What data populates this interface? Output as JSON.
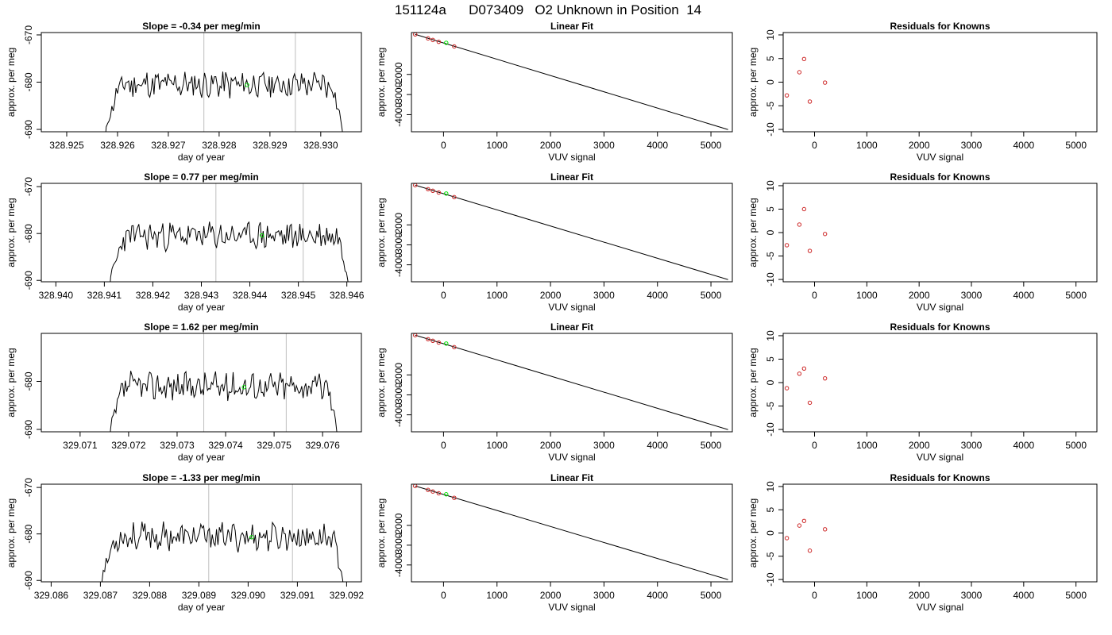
{
  "main_title": "151124a      D073409   O2 Unknown in Position  14",
  "colors": {
    "trace": "#000000",
    "vline": "#bebebe",
    "unknown": "#00e000",
    "known": "#cd2626",
    "box": "#000000"
  },
  "chart_data": [
    {
      "type": "line",
      "title": "Slope =  -0.34  per meg/min",
      "xlabel": "day of year",
      "ylabel": "approx. per meg",
      "xlim": [
        328.9245,
        328.9308
      ],
      "ylim": [
        -690.5,
        -669.5
      ],
      "xticks": [
        328.925,
        328.926,
        328.927,
        328.928,
        328.929,
        328.93
      ],
      "yticks": [
        -670,
        -680,
        -690
      ],
      "vlines": [
        328.9277,
        328.9295
      ],
      "trace_x": [
        328.92575,
        328.93045
      ],
      "trace_seed": 11,
      "trace_mean": -680.5,
      "unknown_point": [
        328.92855,
        -680.6
      ]
    },
    {
      "type": "scatter",
      "title": "Linear Fit",
      "xlabel": "VUV signal",
      "ylabel": "approx. per meg",
      "xlim": [
        -600,
        5400
      ],
      "ylim": [
        -4850,
        80
      ],
      "xticks": [
        0,
        1000,
        2000,
        3000,
        4000,
        5000
      ],
      "yticks": [
        -2000,
        -3000,
        -4000
      ],
      "fit_line": [
        [
          -530,
          -10
        ],
        [
          5320,
          -4740
        ]
      ],
      "knowns": [
        [
          -530,
          -10
        ],
        [
          -290,
          -210
        ],
        [
          -200,
          -290
        ],
        [
          -90,
          -380
        ],
        [
          200,
          -610
        ]
      ],
      "unknown_point": [
        50,
        -430
      ]
    },
    {
      "type": "scatter",
      "title": "Residuals for Knowns",
      "xlabel": "VUV signal",
      "ylabel": "approx. per meg",
      "xlim": [
        -600,
        5400
      ],
      "ylim": [
        -10.5,
        10.5
      ],
      "xticks": [
        0,
        1000,
        2000,
        3000,
        4000,
        5000
      ],
      "yticks": [
        10,
        5,
        0,
        -5,
        -10
      ],
      "points": [
        [
          -530,
          -2.8
        ],
        [
          -290,
          2.1
        ],
        [
          -200,
          4.9
        ],
        [
          -90,
          -4.1
        ],
        [
          200,
          -0.1
        ]
      ]
    },
    {
      "type": "line",
      "title": "Slope =  0.77  per meg/min",
      "xlabel": "day of year",
      "ylabel": "approx. per meg",
      "xlim": [
        328.9397,
        328.9463
      ],
      "ylim": [
        -690.3,
        -669.3
      ],
      "xticks": [
        328.94,
        328.941,
        328.942,
        328.943,
        328.944,
        328.945,
        328.946
      ],
      "yticks": [
        -670,
        -680,
        -690
      ],
      "vlines": [
        328.9433,
        328.9451
      ],
      "trace_x": [
        328.9411,
        328.94605
      ],
      "trace_seed": 23,
      "trace_mean": -680.5,
      "unknown_point": [
        328.94425,
        -680.4
      ]
    },
    {
      "type": "scatter",
      "title": "Linear Fit",
      "xlabel": "VUV signal",
      "ylabel": "approx. per meg",
      "xlim": [
        -600,
        5400
      ],
      "ylim": [
        -4850,
        80
      ],
      "xticks": [
        0,
        1000,
        2000,
        3000,
        4000,
        5000
      ],
      "yticks": [
        -2000,
        -3000,
        -4000
      ],
      "fit_line": [
        [
          -530,
          -10
        ],
        [
          5320,
          -4740
        ]
      ],
      "knowns": [
        [
          -530,
          -10
        ],
        [
          -290,
          -210
        ],
        [
          -200,
          -290
        ],
        [
          -90,
          -380
        ],
        [
          200,
          -610
        ]
      ],
      "unknown_point": [
        50,
        -430
      ]
    },
    {
      "type": "scatter",
      "title": "Residuals for Knowns",
      "xlabel": "VUV signal",
      "ylabel": "approx. per meg",
      "xlim": [
        -600,
        5400
      ],
      "ylim": [
        -10.5,
        10.5
      ],
      "xticks": [
        0,
        1000,
        2000,
        3000,
        4000,
        5000
      ],
      "yticks": [
        10,
        5,
        0,
        -5,
        -10
      ],
      "points": [
        [
          -530,
          -2.7
        ],
        [
          -290,
          1.7
        ],
        [
          -200,
          5.0
        ],
        [
          -90,
          -3.9
        ],
        [
          200,
          -0.3
        ]
      ]
    },
    {
      "type": "line",
      "title": "Slope =  1.62  per meg/min",
      "xlabel": "day of year",
      "ylabel": "approx. per meg",
      "xlim": [
        329.0702,
        329.0768
      ],
      "ylim": [
        -690.5,
        -670.0
      ],
      "xticks": [
        329.071,
        329.072,
        329.073,
        329.074,
        329.075,
        329.076
      ],
      "yticks": [
        -680,
        -690
      ],
      "vlines": [
        329.07355,
        329.07525
      ],
      "trace_x": [
        329.0716,
        329.07632
      ],
      "trace_seed": 37,
      "trace_mean": -681.0,
      "unknown_point": [
        329.07438,
        -681.2
      ]
    },
    {
      "type": "scatter",
      "title": "Linear Fit",
      "xlabel": "VUV signal",
      "ylabel": "approx. per meg",
      "xlim": [
        -600,
        5400
      ],
      "ylim": [
        -4850,
        80
      ],
      "xticks": [
        0,
        1000,
        2000,
        3000,
        4000,
        5000
      ],
      "yticks": [
        -2000,
        -3000,
        -4000
      ],
      "fit_line": [
        [
          -530,
          -10
        ],
        [
          5320,
          -4740
        ]
      ],
      "knowns": [
        [
          -530,
          -10
        ],
        [
          -290,
          -210
        ],
        [
          -200,
          -290
        ],
        [
          -90,
          -380
        ],
        [
          200,
          -610
        ]
      ],
      "unknown_point": [
        50,
        -430
      ]
    },
    {
      "type": "scatter",
      "title": "Residuals for Knowns",
      "xlabel": "VUV signal",
      "ylabel": "approx. per meg",
      "xlim": [
        -600,
        5400
      ],
      "ylim": [
        -10.5,
        10.5
      ],
      "xticks": [
        0,
        1000,
        2000,
        3000,
        4000,
        5000
      ],
      "yticks": [
        10,
        5,
        0,
        -5,
        -10
      ],
      "points": [
        [
          -530,
          -1.2
        ],
        [
          -290,
          1.9
        ],
        [
          -200,
          3.0
        ],
        [
          -90,
          -4.3
        ],
        [
          200,
          0.9
        ]
      ]
    },
    {
      "type": "line",
      "title": "Slope =  -1.33  per meg/min",
      "xlabel": "day of year",
      "ylabel": "approx. per meg",
      "xlim": [
        329.0858,
        329.0923
      ],
      "ylim": [
        -690.3,
        -669.3
      ],
      "xticks": [
        329.086,
        329.087,
        329.088,
        329.089,
        329.09,
        329.091,
        329.092
      ],
      "yticks": [
        -670,
        -680,
        -690
      ],
      "vlines": [
        329.0892,
        329.0909
      ],
      "trace_x": [
        329.087,
        329.09195
      ],
      "trace_seed": 53,
      "trace_mean": -680.6,
      "unknown_point": [
        329.09007,
        -680.7
      ]
    },
    {
      "type": "scatter",
      "title": "Linear Fit",
      "xlabel": "VUV signal",
      "ylabel": "approx. per meg",
      "xlim": [
        -600,
        5400
      ],
      "ylim": [
        -4850,
        80
      ],
      "xticks": [
        0,
        1000,
        2000,
        3000,
        4000,
        5000
      ],
      "yticks": [
        -2000,
        -3000,
        -4000
      ],
      "fit_line": [
        [
          -530,
          -10
        ],
        [
          5320,
          -4740
        ]
      ],
      "knowns": [
        [
          -530,
          -10
        ],
        [
          -290,
          -210
        ],
        [
          -200,
          -290
        ],
        [
          -90,
          -380
        ],
        [
          200,
          -610
        ]
      ],
      "unknown_point": [
        50,
        -430
      ]
    },
    {
      "type": "scatter",
      "title": "Residuals for Knowns",
      "xlabel": "VUV signal",
      "ylabel": "approx. per meg",
      "xlim": [
        -600,
        5400
      ],
      "ylim": [
        -10.5,
        10.5
      ],
      "xticks": [
        0,
        1000,
        2000,
        3000,
        4000,
        5000
      ],
      "yticks": [
        10,
        5,
        0,
        -5,
        -10
      ],
      "points": [
        [
          -530,
          -1.1
        ],
        [
          -290,
          1.6
        ],
        [
          -200,
          2.6
        ],
        [
          -90,
          -3.8
        ],
        [
          200,
          0.8
        ]
      ]
    }
  ]
}
